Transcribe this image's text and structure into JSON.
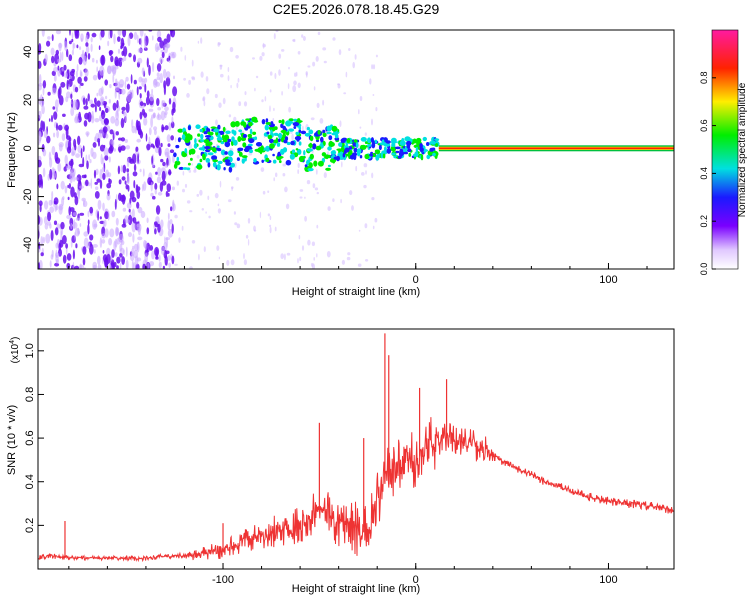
{
  "figure_title": "C2E5.2026.078.18.45.G29",
  "colors": {
    "snr_line": "#ee3333",
    "axis": "#000000",
    "background": "#ffffff"
  },
  "chart_data": [
    {
      "type": "heatmap",
      "xlabel": "Height of straight line (km)",
      "ylabel": "Frequency (Hz)",
      "xlim": [
        -196,
        134
      ],
      "ylim": [
        -50,
        49
      ],
      "xticks": [
        -100,
        0,
        100
      ],
      "xtick_labels": [
        "-100",
        "0",
        "100"
      ],
      "yticks": [
        -40,
        -20,
        0,
        20,
        40
      ],
      "ytick_labels": [
        "-40",
        "-20",
        "0",
        "20",
        "40"
      ],
      "colorbar": {
        "label": "Normalized spectral amplitude",
        "range": [
          0.0,
          1.0
        ],
        "ticks": [
          0.0,
          0.2,
          0.4,
          0.6,
          0.8
        ],
        "tick_labels": [
          "0.0",
          "0.2",
          "0.4",
          "0.6",
          "0.8"
        ]
      },
      "features": {
        "noise_region_x": [
          -196,
          -125
        ],
        "scatter_region_x": [
          -125,
          -20
        ],
        "trend_band_x": [
          -125,
          12
        ],
        "steady_line_x": [
          12,
          134
        ],
        "steady_line_freq": 0
      }
    },
    {
      "type": "line",
      "xlabel": "Height of straight line (km)",
      "ylabel": "SNR (10 * v/v)",
      "y_multiplier_label": "(x10",
      "y_multiplier_exp": "4",
      "multiplier_close": ")",
      "xlim": [
        -196,
        134
      ],
      "ylim": [
        0,
        1.1
      ],
      "xticks": [
        -100,
        0,
        100
      ],
      "xtick_labels": [
        "-100",
        "0",
        "100"
      ],
      "yticks": [
        0.2,
        0.4,
        0.6,
        0.8,
        1.0
      ],
      "ytick_labels": [
        "0.2",
        "0.4",
        "0.6",
        "0.8",
        "1.0"
      ],
      "series": [
        {
          "name": "SNR",
          "x": [
            -196,
            -190,
            -180,
            -175,
            -170,
            -160,
            -150,
            -140,
            -130,
            -120,
            -110,
            -100,
            -90,
            -80,
            -70,
            -60,
            -55,
            -50,
            -45,
            -40,
            -35,
            -30,
            -25,
            -20,
            -15,
            -10,
            -5,
            0,
            5,
            10,
            15,
            20,
            25,
            30,
            40,
            50,
            60,
            70,
            80,
            90,
            100,
            110,
            120,
            134
          ],
          "y": [
            0.05,
            0.06,
            0.05,
            0.05,
            0.05,
            0.05,
            0.05,
            0.05,
            0.06,
            0.06,
            0.07,
            0.09,
            0.12,
            0.15,
            0.18,
            0.21,
            0.25,
            0.27,
            0.24,
            0.22,
            0.2,
            0.18,
            0.16,
            0.3,
            0.42,
            0.45,
            0.48,
            0.5,
            0.54,
            0.58,
            0.6,
            0.6,
            0.59,
            0.57,
            0.52,
            0.47,
            0.43,
            0.39,
            0.36,
            0.33,
            0.31,
            0.3,
            0.29,
            0.27
          ]
        }
      ],
      "spikes": [
        {
          "x": -182,
          "y": 0.22
        },
        {
          "x": -100,
          "y": 0.21
        },
        {
          "x": -50,
          "y": 0.67
        },
        {
          "x": -27,
          "y": 0.6
        },
        {
          "x": -16,
          "y": 1.08
        },
        {
          "x": -14,
          "y": 0.98
        },
        {
          "x": 2,
          "y": 0.83
        },
        {
          "x": 16,
          "y": 0.87
        }
      ]
    }
  ]
}
